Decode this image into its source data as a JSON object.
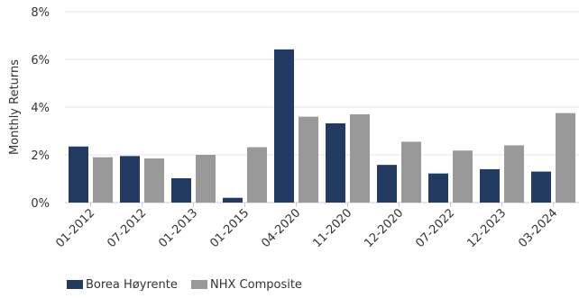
{
  "chart_data": {
    "type": "bar",
    "ylabel": "Monthly Returns",
    "ylim": [
      0,
      8
    ],
    "yticks": [
      "0%",
      "2%",
      "4%",
      "6%",
      "8%"
    ],
    "ytick_values": [
      0,
      2,
      4,
      6,
      8
    ],
    "grid": true,
    "legend_position": "bottom-left",
    "categories": [
      "01-2012",
      "07-2012",
      "01-2013",
      "01-2015",
      "04-2020",
      "11-2020",
      "12-2020",
      "07-2022",
      "12-2023",
      "03-2024"
    ],
    "series": [
      {
        "name": "Borea Høyrente",
        "color": "#233a63",
        "values": [
          2.35,
          1.95,
          1.02,
          0.2,
          6.42,
          3.32,
          1.58,
          1.22,
          1.4,
          1.3
        ]
      },
      {
        "name": "NHX Composite",
        "color": "#999999",
        "values": [
          1.9,
          1.85,
          2.0,
          2.32,
          3.6,
          3.7,
          2.55,
          2.18,
          2.4,
          3.75
        ]
      }
    ]
  }
}
